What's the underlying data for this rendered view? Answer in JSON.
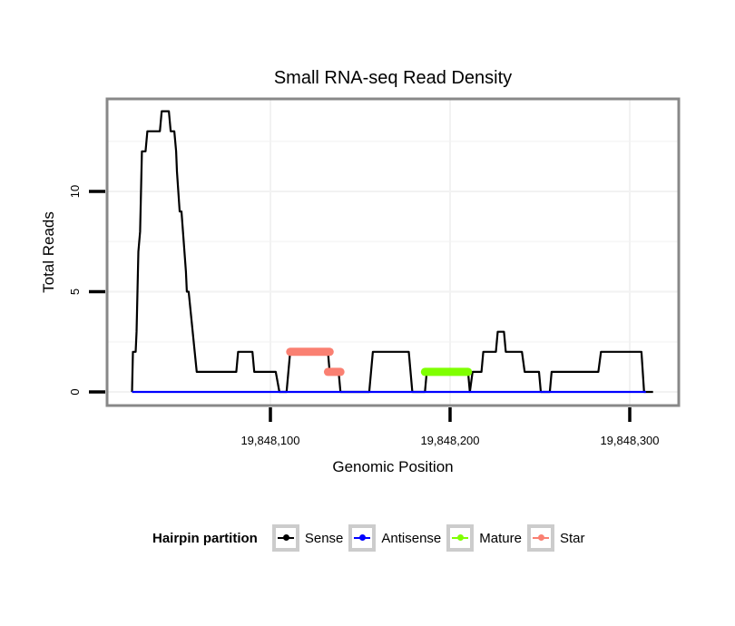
{
  "chart_data": {
    "type": "line",
    "title": "Small RNA-seq Read Density",
    "xlabel": "Genomic Position",
    "ylabel": "Total Reads",
    "xlim": [
      19848023,
      19848313
    ],
    "ylim": [
      0,
      14
    ],
    "x_ticks": [
      19848100,
      19848200,
      19848300
    ],
    "x_tick_labels": [
      "19,848,100",
      "19,848,200",
      "19,848,300"
    ],
    "y_ticks": [
      0,
      5,
      10
    ],
    "y_tick_labels": [
      "0",
      "5",
      "10"
    ],
    "grid": true,
    "legend_position": "bottom",
    "legend_title": "Hairpin partition",
    "series": [
      {
        "name": "Sense",
        "color": "#000000",
        "points": [
          [
            19848023,
            0
          ],
          [
            19848023.5,
            2
          ],
          [
            19848025,
            2
          ],
          [
            19848025.5,
            3
          ],
          [
            19848026.5,
            7
          ],
          [
            19848027.5,
            8
          ],
          [
            19848028.5,
            12
          ],
          [
            19848030.5,
            12
          ],
          [
            19848031.5,
            13
          ],
          [
            19848038.5,
            13
          ],
          [
            19848039.5,
            14
          ],
          [
            19848043.5,
            14
          ],
          [
            19848044.5,
            13
          ],
          [
            19848046.5,
            13
          ],
          [
            19848047.5,
            12
          ],
          [
            19848048,
            11
          ],
          [
            19848049.5,
            9
          ],
          [
            19848050.5,
            9
          ],
          [
            19848053,
            6
          ],
          [
            19848053.5,
            5
          ],
          [
            19848054.5,
            5
          ],
          [
            19848059,
            1
          ],
          [
            19848081,
            1
          ],
          [
            19848082,
            2
          ],
          [
            19848090,
            2
          ],
          [
            19848091,
            1
          ],
          [
            19848103,
            1
          ],
          [
            19848105,
            0
          ],
          [
            19848109,
            0
          ],
          [
            19848111,
            2
          ],
          [
            19848132,
            2
          ],
          [
            19848133,
            1
          ],
          [
            19848138,
            1
          ],
          [
            19848139,
            0
          ],
          [
            19848155,
            0
          ],
          [
            19848157,
            2
          ],
          [
            19848177,
            2
          ],
          [
            19848179,
            0
          ],
          [
            19848186,
            0
          ],
          [
            19848187,
            1
          ],
          [
            19848210,
            1
          ],
          [
            19848211,
            0
          ],
          [
            19848212.5,
            1
          ],
          [
            19848217.5,
            1
          ],
          [
            19848218.5,
            2
          ],
          [
            19848225.5,
            2
          ],
          [
            19848226.5,
            3
          ],
          [
            19848230,
            3
          ],
          [
            19848231,
            2
          ],
          [
            19848240,
            2
          ],
          [
            19848241.5,
            1
          ],
          [
            19848249.5,
            1
          ],
          [
            19848250.5,
            0
          ],
          [
            19848255.5,
            0
          ],
          [
            19848256.5,
            1
          ],
          [
            19848282.5,
            1
          ],
          [
            19848284,
            2
          ],
          [
            19848306.5,
            2
          ],
          [
            19848308,
            0
          ],
          [
            19848313,
            0
          ]
        ]
      },
      {
        "name": "Antisense",
        "color": "#0000ff",
        "points": [
          [
            19848023,
            0
          ],
          [
            19848309,
            0
          ]
        ]
      },
      {
        "name": "Mature",
        "color": "#7fff00",
        "points": [
          [
            19848186,
            1
          ],
          [
            19848210,
            1
          ]
        ]
      },
      {
        "name": "Star",
        "color": "#fa8072",
        "segments": [
          [
            [
              19848111,
              2
            ],
            [
              19848133,
              2
            ]
          ],
          [
            [
              19848132,
              1
            ],
            [
              19848139,
              1
            ]
          ]
        ]
      }
    ]
  }
}
